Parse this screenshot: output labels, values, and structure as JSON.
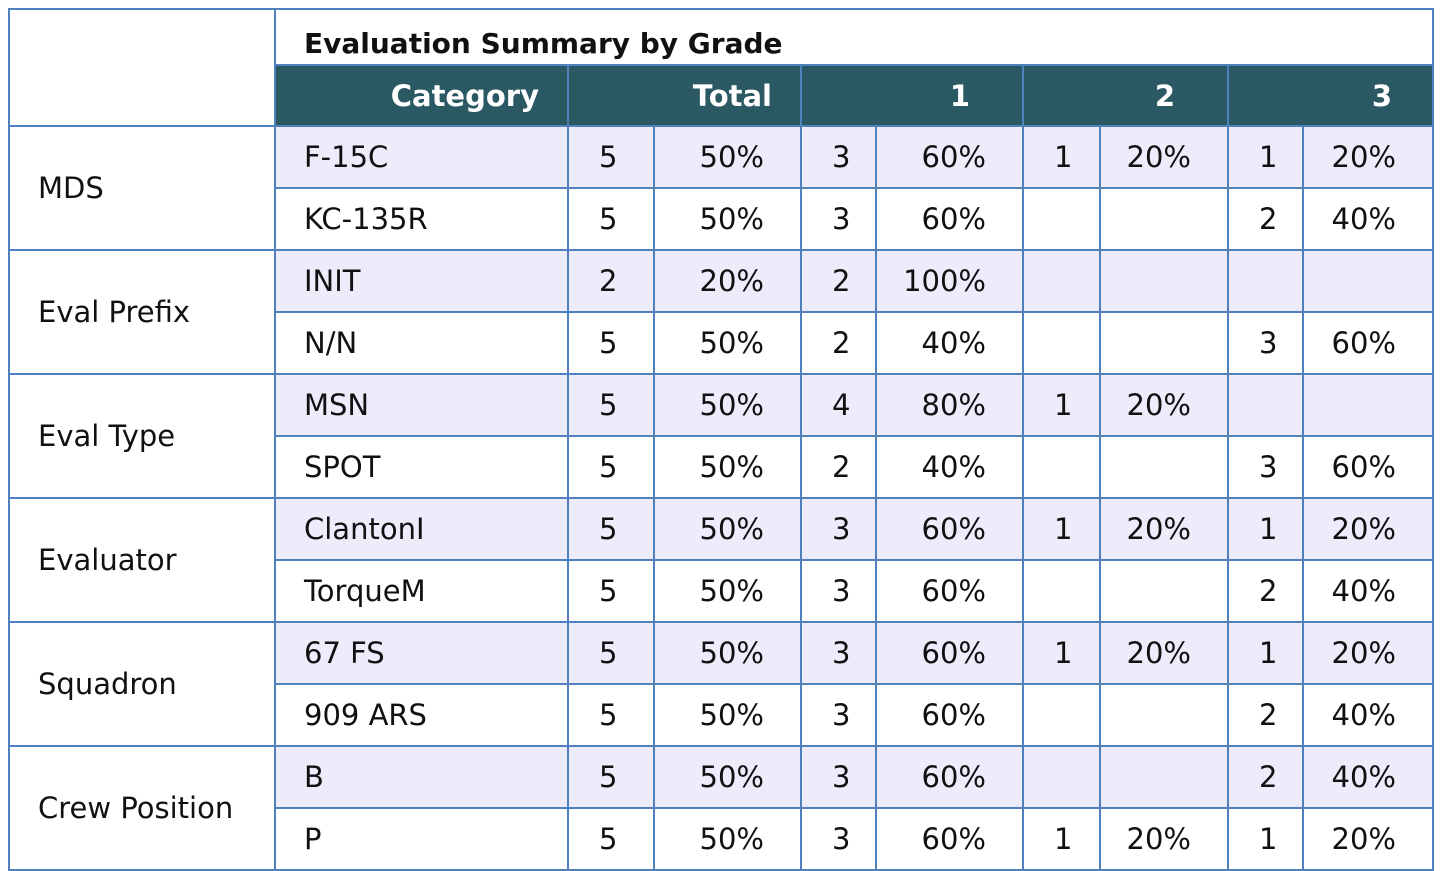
{
  "table": {
    "title": "Evaluation Summary by Grade",
    "headers": {
      "category": "Category",
      "total": "Total",
      "grade_1": "1",
      "grade_2": "2",
      "grade_3": "3"
    },
    "groups": [
      {
        "label": "MDS",
        "rows": [
          {
            "category": "F-15C",
            "total_n": "5",
            "total_pct": "50%",
            "g1_n": "3",
            "g1_pct": "60%",
            "g2_n": "1",
            "g2_pct": "20%",
            "g3_n": "1",
            "g3_pct": "20%"
          },
          {
            "category": "KC-135R",
            "total_n": "5",
            "total_pct": "50%",
            "g1_n": "3",
            "g1_pct": "60%",
            "g2_n": "",
            "g2_pct": "",
            "g3_n": "2",
            "g3_pct": "40%"
          }
        ]
      },
      {
        "label": "Eval Prefix",
        "rows": [
          {
            "category": "INIT",
            "total_n": "2",
            "total_pct": "20%",
            "g1_n": "2",
            "g1_pct": "100%",
            "g2_n": "",
            "g2_pct": "",
            "g3_n": "",
            "g3_pct": ""
          },
          {
            "category": "N/N",
            "total_n": "5",
            "total_pct": "50%",
            "g1_n": "2",
            "g1_pct": "40%",
            "g2_n": "",
            "g2_pct": "",
            "g3_n": "3",
            "g3_pct": "60%"
          }
        ]
      },
      {
        "label": "Eval Type",
        "rows": [
          {
            "category": "MSN",
            "total_n": "5",
            "total_pct": "50%",
            "g1_n": "4",
            "g1_pct": "80%",
            "g2_n": "1",
            "g2_pct": "20%",
            "g3_n": "",
            "g3_pct": ""
          },
          {
            "category": "SPOT",
            "total_n": "5",
            "total_pct": "50%",
            "g1_n": "2",
            "g1_pct": "40%",
            "g2_n": "",
            "g2_pct": "",
            "g3_n": "3",
            "g3_pct": "60%"
          }
        ]
      },
      {
        "label": "Evaluator",
        "rows": [
          {
            "category": "ClantonI",
            "total_n": "5",
            "total_pct": "50%",
            "g1_n": "3",
            "g1_pct": "60%",
            "g2_n": "1",
            "g2_pct": "20%",
            "g3_n": "1",
            "g3_pct": "20%"
          },
          {
            "category": "TorqueM",
            "total_n": "5",
            "total_pct": "50%",
            "g1_n": "3",
            "g1_pct": "60%",
            "g2_n": "",
            "g2_pct": "",
            "g3_n": "2",
            "g3_pct": "40%"
          }
        ]
      },
      {
        "label": "Squadron",
        "rows": [
          {
            "category": "67 FS",
            "total_n": "5",
            "total_pct": "50%",
            "g1_n": "3",
            "g1_pct": "60%",
            "g2_n": "1",
            "g2_pct": "20%",
            "g3_n": "1",
            "g3_pct": "20%"
          },
          {
            "category": "909 ARS",
            "total_n": "5",
            "total_pct": "50%",
            "g1_n": "3",
            "g1_pct": "60%",
            "g2_n": "",
            "g2_pct": "",
            "g3_n": "2",
            "g3_pct": "40%"
          }
        ]
      },
      {
        "label": "Crew Position",
        "rows": [
          {
            "category": "B",
            "total_n": "5",
            "total_pct": "50%",
            "g1_n": "3",
            "g1_pct": "60%",
            "g2_n": "",
            "g2_pct": "",
            "g3_n": "2",
            "g3_pct": "40%"
          },
          {
            "category": "P",
            "total_n": "5",
            "total_pct": "50%",
            "g1_n": "3",
            "g1_pct": "60%",
            "g2_n": "1",
            "g2_pct": "20%",
            "g3_n": "1",
            "g3_pct": "20%"
          }
        ]
      }
    ]
  },
  "colors": {
    "header_bg": "#2a5963",
    "header_text": "#ffffff",
    "border": "#4f81bd",
    "shaded_row": "#ececfb"
  }
}
